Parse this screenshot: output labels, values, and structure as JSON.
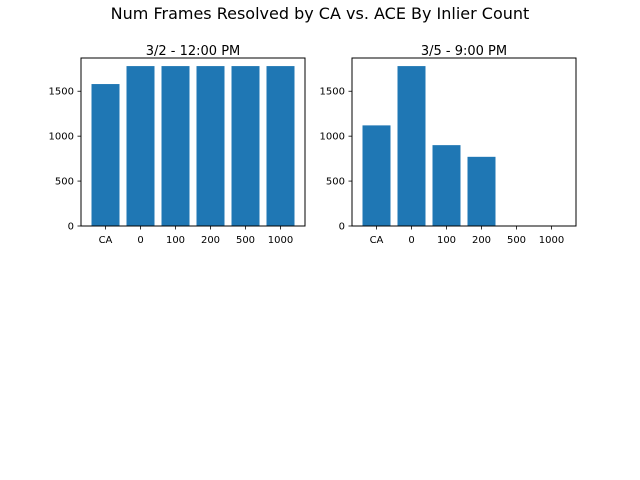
{
  "figure": {
    "suptitle": "Num Frames Resolved by CA vs. ACE By Inlier Count"
  },
  "colors": {
    "bar": "#1f77b4",
    "axis": "#000000",
    "background": "#ffffff"
  },
  "chart_data": [
    {
      "type": "bar",
      "title": "3/2 - 12:00 PM",
      "xlabel": "",
      "ylabel": "",
      "categories": [
        "CA",
        "0",
        "100",
        "200",
        "500",
        "1000"
      ],
      "values": [
        1580,
        1780,
        1780,
        1780,
        1780,
        1780
      ],
      "ylim": [
        0,
        1870
      ],
      "yticks": [
        0,
        500,
        1000,
        1500
      ],
      "grid": false,
      "legend": "none"
    },
    {
      "type": "bar",
      "title": "3/5 - 9:00 PM",
      "xlabel": "",
      "ylabel": "",
      "categories": [
        "CA",
        "0",
        "100",
        "200",
        "500",
        "1000"
      ],
      "values": [
        1120,
        1780,
        900,
        770,
        0,
        0
      ],
      "ylim": [
        0,
        1870
      ],
      "yticks": [
        0,
        500,
        1000,
        1500
      ],
      "grid": false,
      "legend": "none"
    }
  ]
}
